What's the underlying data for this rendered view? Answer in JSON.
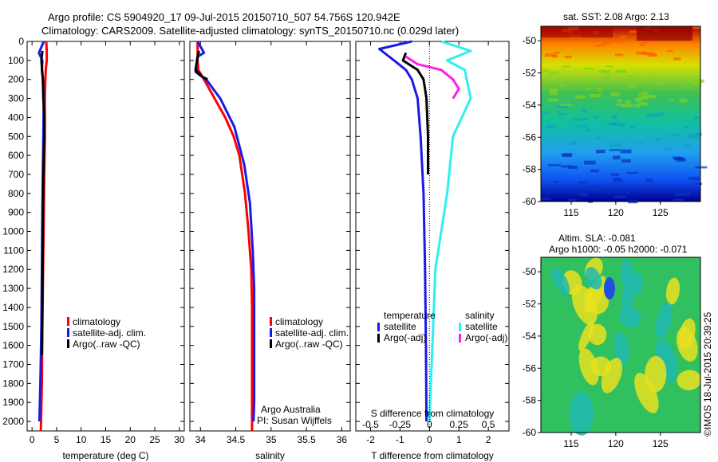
{
  "header": {
    "line1": "Argo profile: CS 5904920_17 09-Jul-2015 20150710_507 54.756S 120.942E",
    "line2": "Climatology: CARS2009. Satellite-adjusted climatology: synTS_20150710.nc (0.029d later)"
  },
  "watermark": "©IMOS 18-Jul-2015 20:39:25",
  "colors": {
    "climatology": "#ff0000",
    "satellite": "#1a1ae6",
    "argo": "#000000",
    "sal_satellite": "#2ef0f0",
    "sal_argo": "#ff1ee6"
  },
  "chart_data": [
    {
      "type": "line",
      "xlabel": "temperature (deg C)",
      "xticks": [
        "0",
        "5",
        "10",
        "15",
        "20",
        "25",
        "30"
      ],
      "xlim": [
        -1,
        31
      ],
      "ylim": [
        2050,
        0
      ],
      "yticks": [
        "0",
        "100",
        "200",
        "300",
        "400",
        "500",
        "600",
        "700",
        "800",
        "900",
        "1000",
        "1100",
        "1200",
        "1300",
        "1400",
        "1500",
        "1600",
        "1700",
        "1800",
        "1900",
        "2000"
      ],
      "legend": [
        "climatology",
        "satellite-adj. clim.",
        "Argo(..raw -QC)"
      ],
      "series": [
        {
          "name": "climatology",
          "x": [
            2.9,
            3.0,
            3.0,
            2.8,
            2.7,
            2.6,
            2.6,
            2.5,
            2.4,
            2.3,
            2.2,
            2.1,
            2.0,
            1.8
          ],
          "y": [
            0,
            50,
            100,
            150,
            200,
            300,
            500,
            700,
            900,
            1100,
            1300,
            1500,
            1800,
            2050
          ]
        },
        {
          "name": "satellite-adj. clim.",
          "x": [
            2.4,
            1.4,
            2.1,
            2.0,
            2.2,
            2.4,
            2.3,
            2.2,
            2.1,
            2.0,
            1.9,
            1.7,
            1.5
          ],
          "y": [
            0,
            60,
            100,
            150,
            200,
            300,
            500,
            700,
            900,
            1200,
            1500,
            1800,
            2000
          ]
        },
        {
          "name": "Argo(..raw -QC)",
          "x": [
            2.1,
            1.9,
            2.2,
            2.3,
            2.5,
            2.5,
            2.3,
            2.2,
            2.1,
            2.0
          ],
          "y": [
            50,
            100,
            200,
            300,
            400,
            500,
            700,
            1000,
            1400,
            1650
          ]
        }
      ]
    },
    {
      "type": "line",
      "xlabel": "salinity",
      "xticks": [
        "34",
        "34.5",
        "35",
        "35.5",
        "36"
      ],
      "xlim": [
        33.85,
        36.12
      ],
      "ylim": [
        2050,
        0
      ],
      "legend": [
        "climatology",
        "satellite-adj. clim.",
        "Argo(..raw -QC)"
      ],
      "annotation": [
        "Argo Australia",
        "PI: Susan Wijffels"
      ],
      "series": [
        {
          "name": "climatology",
          "x": [
            33.96,
            33.96,
            33.97,
            34.05,
            34.2,
            34.35,
            34.47,
            34.55,
            34.63,
            34.68,
            34.72,
            34.73,
            34.73,
            34.73
          ],
          "y": [
            0,
            100,
            150,
            200,
            300,
            400,
            500,
            600,
            800,
            1000,
            1200,
            1400,
            1700,
            2050
          ]
        },
        {
          "name": "satellite-adj. clim.",
          "x": [
            33.96,
            34.05,
            33.96,
            33.93,
            34.0,
            34.08,
            34.28,
            34.48,
            34.62,
            34.7,
            34.74,
            34.76,
            34.76,
            34.76,
            34.75
          ],
          "y": [
            0,
            60,
            80,
            160,
            180,
            200,
            300,
            450,
            650,
            850,
            1100,
            1300,
            1600,
            1900,
            2000
          ]
        },
        {
          "name": "Argo(..raw -QC)",
          "x": [
            33.98,
            33.96,
            33.93,
            34.02,
            34.1
          ],
          "y": [
            50,
            80,
            150,
            185,
            200
          ]
        }
      ]
    },
    {
      "type": "line",
      "xlabel": "T difference from climatology",
      "x2label": "S difference from climatology",
      "xticks": [
        "-2",
        "-1",
        "0",
        "1",
        "2"
      ],
      "x2ticks": [
        "-0.5",
        "-0.25",
        "0",
        "0.25",
        "0.5"
      ],
      "xlim": [
        -2.5,
        2.7
      ],
      "ylim": [
        2050,
        0
      ],
      "legend_groups": [
        {
          "heading": "temperature",
          "items": [
            "satellite",
            "Argo(-adj)"
          ]
        },
        {
          "heading": "salinity",
          "items": [
            "satellite",
            "Argo(-adj)"
          ]
        }
      ],
      "series": [
        {
          "name": "temperature satellite",
          "x": [
            -0.6,
            -1.7,
            -1.2,
            -0.8,
            -0.6,
            -0.4,
            -0.3,
            -0.2,
            -0.15,
            -0.12,
            -0.1
          ],
          "y": [
            0,
            40,
            100,
            150,
            200,
            300,
            500,
            800,
            1200,
            1600,
            2000
          ]
        },
        {
          "name": "temperature Argo(-adj)",
          "x": [
            -0.8,
            -0.9,
            -0.4,
            -0.2,
            -0.1,
            -0.05,
            -0.05
          ],
          "y": [
            60,
            100,
            150,
            200,
            300,
            500,
            700
          ]
        },
        {
          "name": "salinity satellite",
          "x": [
            0.1,
            0.35,
            0.15,
            0.3,
            0.35,
            0.2,
            0.15,
            0.05,
            0.0
          ],
          "y": [
            0,
            50,
            100,
            150,
            300,
            500,
            800,
            1200,
            2000
          ]
        },
        {
          "name": "salinity Argo(-adj)",
          "x": [
            -0.2,
            -0.1,
            0.1,
            0.2,
            0.25,
            0.2
          ],
          "y": [
            80,
            120,
            150,
            200,
            250,
            300
          ]
        }
      ]
    },
    {
      "type": "heatmap",
      "title": "sat. SST: 2.08 Argo: 2.13",
      "xticks": [
        "115",
        "120",
        "125"
      ],
      "yticks": [
        "-50",
        "-52",
        "-54",
        "-56",
        "-58",
        "-60"
      ]
    },
    {
      "type": "heatmap",
      "title": "Altim. SLA: -0.081",
      "subtitle": "Argo h1000: -0.05 h2000: -0.071",
      "xticks": [
        "115",
        "120",
        "125"
      ],
      "yticks": [
        "-50",
        "-52",
        "-54",
        "-56",
        "-58",
        "-60"
      ]
    }
  ]
}
